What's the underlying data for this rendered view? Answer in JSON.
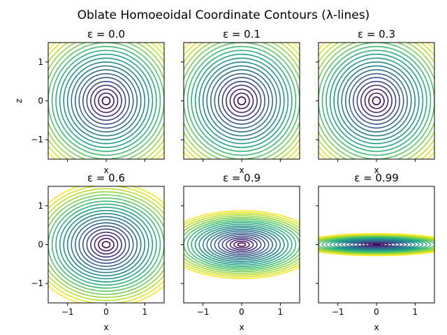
{
  "figure": {
    "suptitle": "Oblate Homoeoidal Coordinate Contours (λ-lines)"
  },
  "chart_data": [
    {
      "type": "contour",
      "title": "ε = 0.0",
      "epsilon": 0.0,
      "xlabel": "",
      "ylabel": "z",
      "xlim": [
        -1.5,
        1.5
      ],
      "ylim": [
        -1.5,
        1.5
      ],
      "xticks": [],
      "yticks": [
        "1",
        "0",
        "−1"
      ],
      "contour_levels_semi_axis_x": [
        0.1,
        0.2,
        0.3,
        0.4,
        0.5,
        0.6,
        0.7,
        0.8,
        0.9,
        1.0,
        1.1,
        1.2,
        1.3,
        1.4,
        1.5,
        1.6,
        1.7,
        1.8,
        1.9,
        2.0
      ],
      "contour_levels_semi_axis_z": [
        0.1,
        0.2,
        0.3,
        0.4,
        0.5,
        0.6,
        0.7,
        0.8,
        0.9,
        1.0,
        1.1,
        1.2,
        1.3,
        1.4,
        1.5,
        1.6,
        1.7,
        1.8,
        1.9,
        2.0
      ]
    },
    {
      "type": "contour",
      "title": "ε = 0.1",
      "epsilon": 0.1,
      "xlabel": "",
      "ylabel": "",
      "xlim": [
        -1.5,
        1.5
      ],
      "ylim": [
        -1.5,
        1.5
      ],
      "xticks": [],
      "yticks": [],
      "contour_levels_semi_axis_x": [
        0.1,
        0.2,
        0.3,
        0.4,
        0.5,
        0.6,
        0.7,
        0.8,
        0.9,
        1.0,
        1.1,
        1.2,
        1.3,
        1.4,
        1.5,
        1.6,
        1.7,
        1.8,
        1.9,
        2.0
      ],
      "contour_levels_semi_axis_z": [
        0.1,
        0.2,
        0.3,
        0.4,
        0.5,
        0.6,
        0.7,
        0.8,
        0.9,
        1.0,
        1.1,
        1.2,
        1.3,
        1.4,
        1.5,
        1.6,
        1.7,
        1.8,
        1.9,
        2.0
      ]
    },
    {
      "type": "contour",
      "title": "ε = 0.3",
      "epsilon": 0.3,
      "xlabel": "",
      "ylabel": "",
      "xlim": [
        -1.5,
        1.5
      ],
      "ylim": [
        -1.5,
        1.5
      ],
      "xticks": [],
      "yticks": [],
      "contour_levels_semi_axis_x": [
        0.1,
        0.2,
        0.3,
        0.4,
        0.5,
        0.6,
        0.7,
        0.8,
        0.9,
        1.0,
        1.1,
        1.2,
        1.3,
        1.4,
        1.5,
        1.6,
        1.7,
        1.8,
        1.9,
        2.0
      ],
      "contour_levels_semi_axis_z": [
        0.1,
        0.2,
        0.3,
        0.4,
        0.5,
        0.6,
        0.7,
        0.8,
        0.9,
        1.0,
        1.1,
        1.2,
        1.3,
        1.4,
        1.5,
        1.6,
        1.7,
        1.8,
        1.9,
        2.0
      ]
    },
    {
      "type": "contour",
      "title": "ε = 0.6",
      "epsilon": 0.6,
      "xlabel": "x",
      "ylabel": "",
      "xlim": [
        -1.5,
        1.5
      ],
      "ylim": [
        -1.5,
        1.5
      ],
      "xticks": [
        "−1",
        "0",
        "1"
      ],
      "yticks": [
        "1",
        "0",
        "−1"
      ],
      "contour_levels_semi_axis_x": [
        0.1,
        0.2,
        0.3,
        0.4,
        0.5,
        0.6,
        0.7,
        0.8,
        0.9,
        1.0,
        1.1,
        1.2,
        1.3,
        1.4,
        1.5,
        1.6,
        1.7,
        1.8,
        1.9,
        2.0
      ],
      "contour_levels_semi_axis_z": [
        0.08,
        0.16,
        0.24,
        0.32,
        0.4,
        0.48,
        0.56,
        0.64,
        0.72,
        0.8,
        0.88,
        0.96,
        1.04,
        1.12,
        1.2,
        1.28,
        1.36,
        1.44,
        1.52,
        1.6
      ]
    },
    {
      "type": "contour",
      "title": "ε = 0.9",
      "epsilon": 0.9,
      "xlabel": "x",
      "ylabel": "",
      "xlim": [
        -1.5,
        1.5
      ],
      "ylim": [
        -1.5,
        1.5
      ],
      "xticks": [
        "−1",
        "0",
        "1"
      ],
      "yticks": [],
      "contour_levels_semi_axis_x": [
        0.1,
        0.2,
        0.3,
        0.4,
        0.5,
        0.6,
        0.7,
        0.8,
        0.9,
        1.0,
        1.1,
        1.2,
        1.3,
        1.4,
        1.5,
        1.6,
        1.7,
        1.8,
        1.9,
        2.0
      ],
      "contour_levels_semi_axis_z": [
        0.044,
        0.087,
        0.131,
        0.174,
        0.218,
        0.262,
        0.305,
        0.349,
        0.392,
        0.436,
        0.479,
        0.523,
        0.567,
        0.61,
        0.654,
        0.697,
        0.741,
        0.785,
        0.828,
        0.872
      ]
    },
    {
      "type": "contour",
      "title": "ε = 0.99",
      "epsilon": 0.99,
      "xlabel": "x",
      "ylabel": "",
      "xlim": [
        -1.5,
        1.5
      ],
      "ylim": [
        -1.5,
        1.5
      ],
      "xticks": [
        "−1",
        "0",
        "1"
      ],
      "yticks": [],
      "contour_levels_semi_axis_x": [
        0.1,
        0.2,
        0.3,
        0.4,
        0.5,
        0.6,
        0.7,
        0.8,
        0.9,
        1.0,
        1.1,
        1.2,
        1.3,
        1.4,
        1.5,
        1.6,
        1.7,
        1.8,
        1.9,
        2.0
      ],
      "contour_levels_semi_axis_z": [
        0.014,
        0.028,
        0.042,
        0.056,
        0.071,
        0.085,
        0.099,
        0.113,
        0.127,
        0.141,
        0.155,
        0.169,
        0.183,
        0.197,
        0.212,
        0.226,
        0.24,
        0.254,
        0.268,
        0.282
      ]
    }
  ],
  "colors": {
    "colormap": "viridis",
    "stops": [
      "#440154",
      "#482878",
      "#3e4989",
      "#31688e",
      "#26828e",
      "#1f9e89",
      "#35b779",
      "#6ece58",
      "#b5de2b",
      "#fde725"
    ]
  }
}
